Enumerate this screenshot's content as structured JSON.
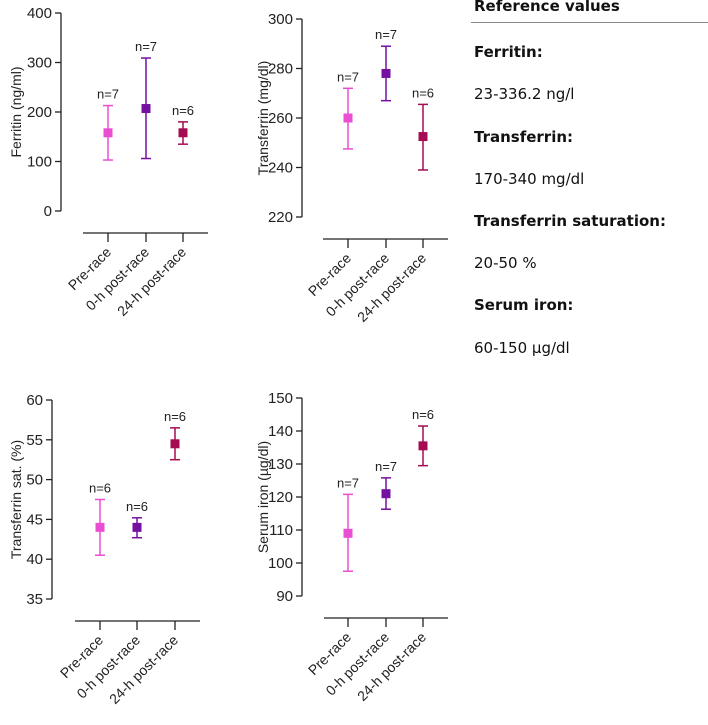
{
  "chart_data": [
    {
      "type": "scatter",
      "ylabel": "Ferritin (ng/ml)",
      "ylim": [
        0,
        400
      ],
      "yticks": [
        0,
        100,
        200,
        300,
        400
      ],
      "categories": [
        "Pre-race",
        "0-h post-race",
        "24-h post-race"
      ],
      "values": [
        158,
        207,
        158
      ],
      "error_low": [
        103,
        106,
        135
      ],
      "error_high": [
        213,
        309,
        180
      ],
      "n_labels": [
        "n=7",
        "n=7",
        "n=6"
      ]
    },
    {
      "type": "scatter",
      "ylabel": "Transferrin (mg/dl)",
      "ylim": [
        220,
        300
      ],
      "yticks": [
        220,
        240,
        260,
        280,
        300
      ],
      "categories": [
        "Pre-race",
        "0-h post-race",
        "24-h post-race"
      ],
      "values": [
        260,
        278,
        252.5
      ],
      "error_low": [
        247.5,
        267,
        239
      ],
      "error_high": [
        272,
        289,
        265.5
      ],
      "n_labels": [
        "n=7",
        "n=7",
        "n=6"
      ]
    },
    {
      "type": "scatter",
      "ylabel": "Transferrin sat. (%)",
      "ylim": [
        35,
        60
      ],
      "yticks": [
        35,
        40,
        45,
        50,
        55,
        60
      ],
      "categories": [
        "Pre-race",
        "0-h post-race",
        "24-h post-race"
      ],
      "values": [
        44,
        44,
        54.5
      ],
      "error_low": [
        40.5,
        42.7,
        52.5
      ],
      "error_high": [
        47.5,
        45.2,
        56.5
      ],
      "n_labels": [
        "n=6",
        "n=6",
        "n=6"
      ]
    },
    {
      "type": "scatter",
      "ylabel": "Serum iron (µg/dl)",
      "ylim": [
        90,
        150
      ],
      "yticks": [
        90,
        100,
        110,
        120,
        130,
        140,
        150
      ],
      "categories": [
        "Pre-race",
        "0-h post-race",
        "24-h post-race"
      ],
      "values": [
        109,
        121,
        135.5
      ],
      "error_low": [
        97.5,
        116.3,
        129.5
      ],
      "error_high": [
        120.8,
        125.8,
        141.5
      ],
      "n_labels": [
        "n=7",
        "n=7",
        "n=6"
      ]
    }
  ],
  "colors": [
    "#ea4fd2",
    "#7510a0",
    "#a50c52"
  ],
  "reference": {
    "title": "Reference values",
    "items": [
      {
        "label": "Ferritin:",
        "value": "23-336.2 ng/l"
      },
      {
        "label": "Transferrin:",
        "value": "170-340 mg/dl"
      },
      {
        "label": "Transferrin saturation:",
        "value": "20-50 %"
      },
      {
        "label": "Serum iron:",
        "value": "60-150 µg/dl"
      }
    ]
  }
}
